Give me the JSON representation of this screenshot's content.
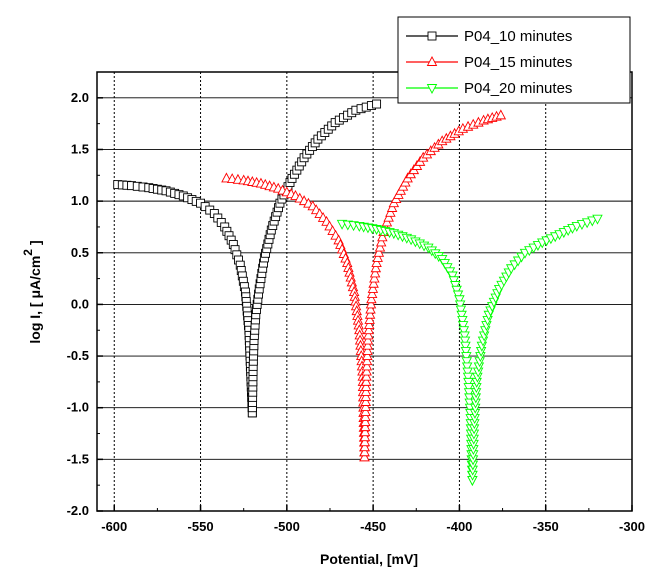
{
  "chart_data": {
    "type": "line",
    "xlabel": "Potential, [mV]",
    "ylabel_main": "log I, [  μA/cm",
    "ylabel_sup": "2",
    "ylabel_end": "]",
    "xlim": [
      -610,
      -300
    ],
    "ylim": [
      -2.0,
      2.25
    ],
    "xticks": [
      -600,
      -550,
      -500,
      -450,
      -400,
      -350,
      -300
    ],
    "yticks": [
      -2.0,
      -1.5,
      -1.0,
      -0.5,
      0.0,
      0.5,
      1.0,
      1.5,
      2.0
    ],
    "xtick_labels": [
      "-600",
      "-550",
      "-500",
      "-450",
      "-400",
      "-350",
      "-300"
    ],
    "ytick_labels": [
      "-2.0",
      "-1.5",
      "-1.0",
      "-0.5",
      "0.0",
      "0.5",
      "1.0",
      "1.5",
      "2.0"
    ],
    "grid": true,
    "legend_position": "top-right",
    "series": [
      {
        "name": "P04_10 minutes",
        "color": "#000000",
        "marker": "square",
        "cathodic": [
          [
            -598,
            1.16
          ],
          [
            -590,
            1.15
          ],
          [
            -580,
            1.13
          ],
          [
            -570,
            1.1
          ],
          [
            -560,
            1.05
          ],
          [
            -550,
            0.98
          ],
          [
            -542,
            0.88
          ],
          [
            -536,
            0.75
          ],
          [
            -531,
            0.58
          ],
          [
            -527,
            0.38
          ],
          [
            -524,
            0.12
          ],
          [
            -522,
            -0.25
          ],
          [
            -521,
            -0.65
          ],
          [
            -520,
            -1.05
          ]
        ],
        "anodic": [
          [
            -520,
            -1.05
          ],
          [
            -519.5,
            -0.6
          ],
          [
            -519,
            -0.35
          ],
          [
            -518,
            -0.1
          ],
          [
            -516,
            0.15
          ],
          [
            -513,
            0.45
          ],
          [
            -509,
            0.72
          ],
          [
            -504,
            0.98
          ],
          [
            -497,
            1.22
          ],
          [
            -490,
            1.42
          ],
          [
            -482,
            1.6
          ],
          [
            -472,
            1.76
          ],
          [
            -460,
            1.88
          ],
          [
            -448,
            1.94
          ]
        ],
        "labeled_points": [
          [
            -520,
            -1.08
          ]
        ]
      },
      {
        "name": "P04_15 minutes",
        "color": "#ff0000",
        "marker": "triangle-up",
        "cathodic": [
          [
            -535,
            1.22
          ],
          [
            -525,
            1.2
          ],
          [
            -515,
            1.17
          ],
          [
            -505,
            1.12
          ],
          [
            -495,
            1.05
          ],
          [
            -485,
            0.95
          ],
          [
            -477,
            0.8
          ],
          [
            -470,
            0.62
          ],
          [
            -465,
            0.4
          ],
          [
            -461,
            0.12
          ],
          [
            -458,
            -0.25
          ],
          [
            -456,
            -0.7
          ],
          [
            -455.5,
            -1.1
          ],
          [
            -455,
            -1.48
          ]
        ],
        "anodic": [
          [
            -455,
            -1.48
          ],
          [
            -454,
            -0.75
          ],
          [
            -453,
            -0.35
          ],
          [
            -451,
            0.05
          ],
          [
            -448,
            0.4
          ],
          [
            -444,
            0.7
          ],
          [
            -438,
            0.98
          ],
          [
            -430,
            1.22
          ],
          [
            -421,
            1.42
          ],
          [
            -410,
            1.58
          ],
          [
            -398,
            1.7
          ],
          [
            -386,
            1.78
          ],
          [
            -376,
            1.83
          ]
        ]
      },
      {
        "name": "P04_20 minutes",
        "color": "#00ff00",
        "marker": "triangle-down",
        "cathodic": [
          [
            -468,
            0.78
          ],
          [
            -458,
            0.76
          ],
          [
            -448,
            0.73
          ],
          [
            -438,
            0.69
          ],
          [
            -428,
            0.63
          ],
          [
            -418,
            0.55
          ],
          [
            -410,
            0.44
          ],
          [
            -404,
            0.28
          ],
          [
            -400,
            0.05
          ],
          [
            -397,
            -0.3
          ],
          [
            -395,
            -0.7
          ],
          [
            -393.5,
            -1.1
          ],
          [
            -393,
            -1.45
          ],
          [
            -392.5,
            -1.7
          ]
        ],
        "anodic": [
          [
            -392.5,
            -1.7
          ],
          [
            -391.5,
            -1.2
          ],
          [
            -390,
            -0.75
          ],
          [
            -387,
            -0.4
          ],
          [
            -383,
            -0.1
          ],
          [
            -377,
            0.15
          ],
          [
            -370,
            0.35
          ],
          [
            -362,
            0.5
          ],
          [
            -352,
            0.6
          ],
          [
            -342,
            0.68
          ],
          [
            -332,
            0.76
          ],
          [
            -320,
            0.83
          ]
        ]
      }
    ]
  }
}
